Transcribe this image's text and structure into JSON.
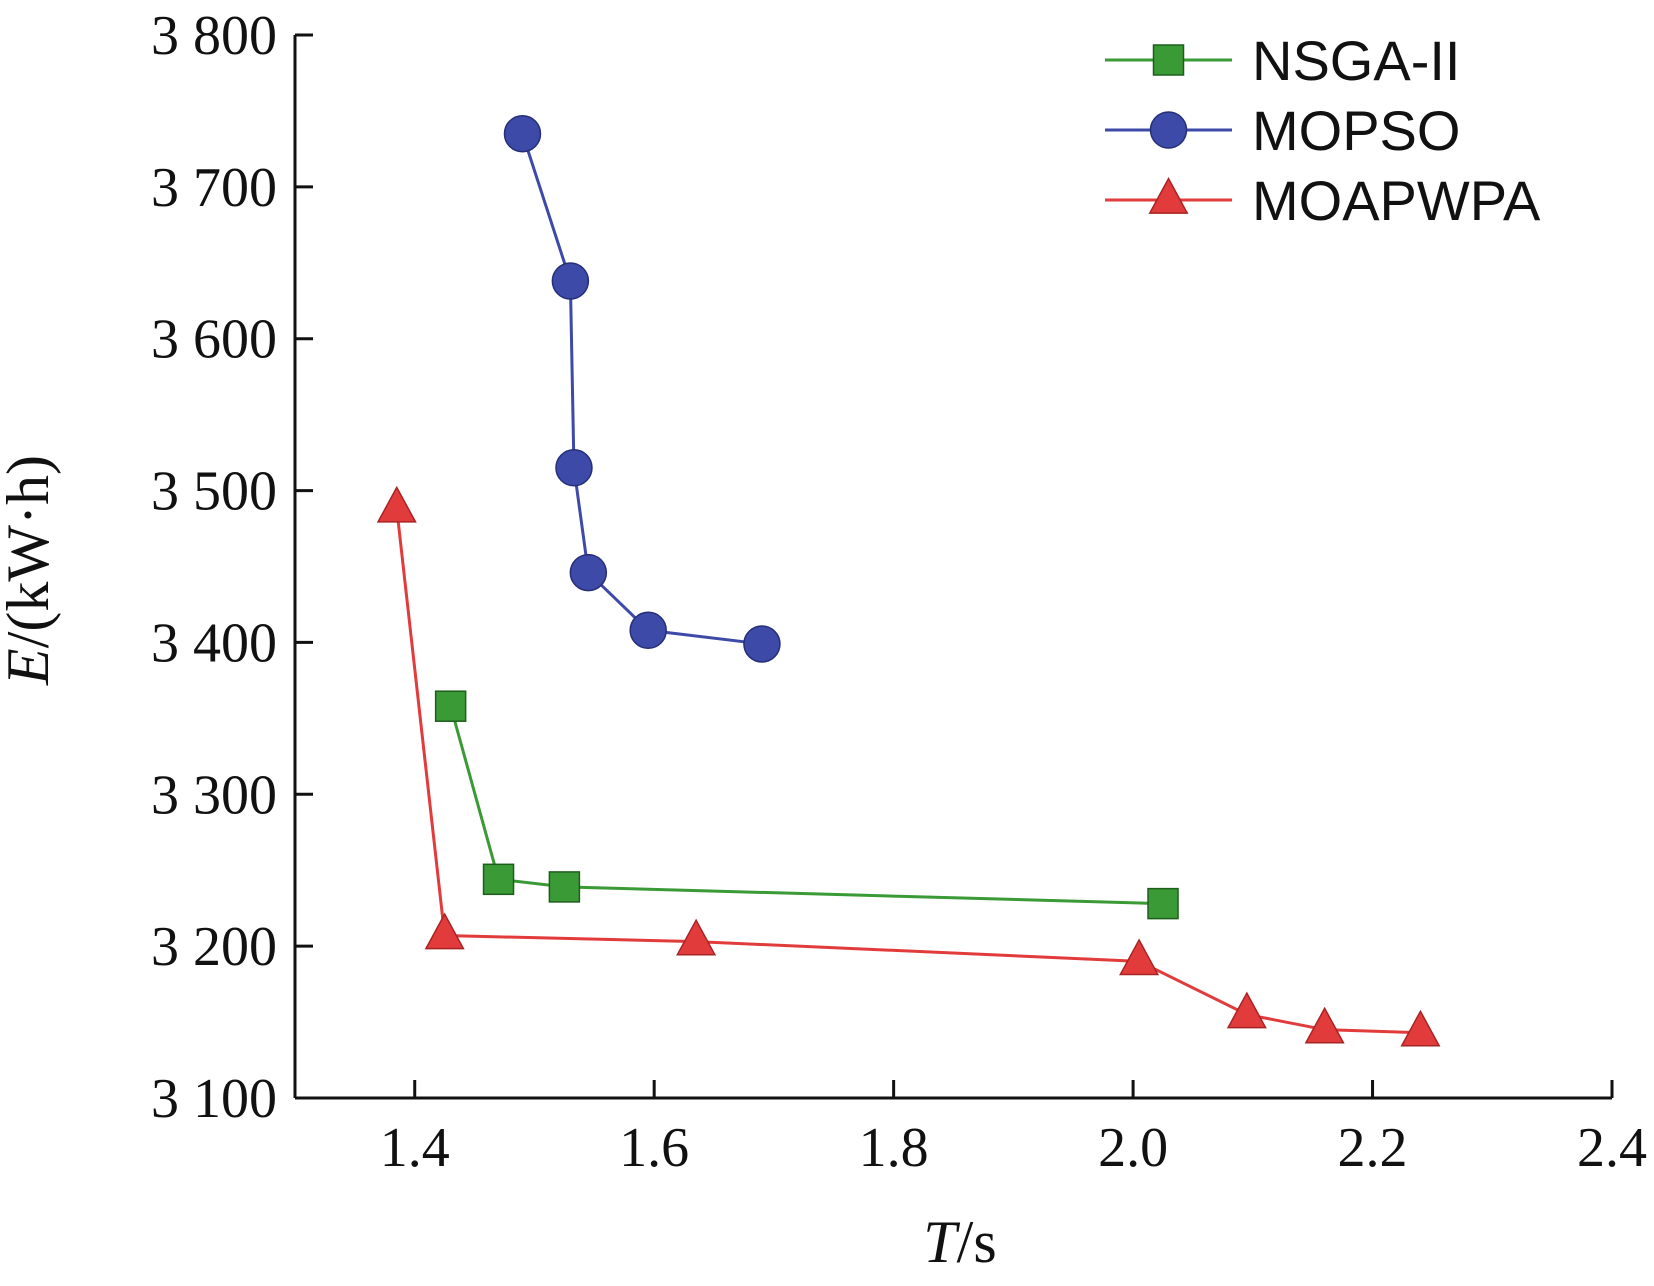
{
  "chart_data": {
    "type": "line",
    "xlabel_var": "T",
    "xlabel_unit": "/s",
    "ylabel_var": "E",
    "ylabel_unit": "/(kW·h)",
    "xlim": [
      1.3,
      2.4
    ],
    "ylim": [
      3100,
      3800
    ],
    "xticks": [
      1.4,
      1.6,
      1.8,
      2.0,
      2.2,
      2.4
    ],
    "xtick_labels": [
      "1.4",
      "1.6",
      "1.8",
      "2.0",
      "2.2",
      "2.4"
    ],
    "yticks": [
      3100,
      3200,
      3300,
      3400,
      3500,
      3600,
      3700,
      3800
    ],
    "ytick_labels": [
      "3 100",
      "3 200",
      "3 300",
      "3 400",
      "3 500",
      "3 600",
      "3 700",
      "3 800"
    ],
    "grid": false,
    "legend_position": "top-right",
    "series": [
      {
        "name": "NSGA-II",
        "color": "#3a9a35",
        "marker": "square",
        "x": [
          1.43,
          1.47,
          1.525,
          2.025
        ],
        "y": [
          3358,
          3244,
          3239,
          3228
        ]
      },
      {
        "name": "MOPSO",
        "color": "#3d4aa8",
        "marker": "circle",
        "x": [
          1.49,
          1.53,
          1.533,
          1.545,
          1.595,
          1.69
        ],
        "y": [
          3735,
          3638,
          3515,
          3446,
          3408,
          3399
        ]
      },
      {
        "name": "MOAPWPA",
        "color": "#e23b3b",
        "marker": "triangle",
        "x": [
          1.385,
          1.425,
          1.635,
          2.005,
          2.095,
          2.16,
          2.24
        ],
        "y": [
          3488,
          3207,
          3203,
          3190,
          3155,
          3145,
          3143
        ]
      }
    ]
  }
}
